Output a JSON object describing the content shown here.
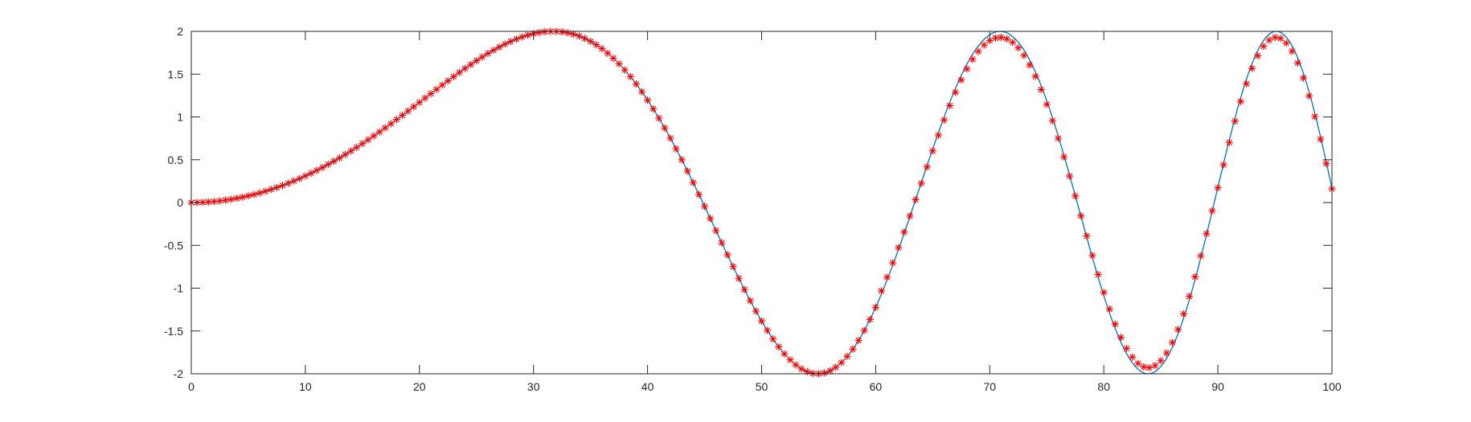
{
  "chart_data": {
    "type": "line",
    "title": "",
    "xlabel": "",
    "ylabel": "",
    "xlim": [
      0,
      100
    ],
    "ylim": [
      -2,
      2
    ],
    "grid": false,
    "legend": "none",
    "x_ticks": [
      {
        "value": 0,
        "label": "0"
      },
      {
        "value": 10,
        "label": "10"
      },
      {
        "value": 20,
        "label": "20"
      },
      {
        "value": 30,
        "label": "30"
      },
      {
        "value": 40,
        "label": "40"
      },
      {
        "value": 50,
        "label": "50"
      },
      {
        "value": 60,
        "label": "60"
      },
      {
        "value": 70,
        "label": "70"
      },
      {
        "value": 80,
        "label": "80"
      },
      {
        "value": 90,
        "label": "90"
      },
      {
        "value": 100,
        "label": "100"
      }
    ],
    "y_ticks": [
      {
        "value": 2,
        "label": "2"
      },
      {
        "value": 1.5,
        "label": "1.5"
      },
      {
        "value": 1,
        "label": "1"
      },
      {
        "value": 0.5,
        "label": "0.5"
      },
      {
        "value": 0,
        "label": "0"
      },
      {
        "value": -0.5,
        "label": "-0.5"
      },
      {
        "value": -1,
        "label": "-1"
      },
      {
        "value": -1.5,
        "label": "-1.5"
      },
      {
        "value": -2,
        "label": "-2"
      }
    ],
    "series": [
      {
        "style": "line",
        "color": "#0072bd",
        "function": "2*sin(x^2/640)",
        "x_range": [
          0,
          100
        ],
        "samples": 200
      },
      {
        "style": "markers",
        "marker": "asterisk",
        "color": "#ff0000",
        "function": "2*sin(x^2/640) with slight amplitude attenuation near peaks",
        "x_range": [
          0,
          100
        ],
        "samples": 200
      }
    ]
  }
}
